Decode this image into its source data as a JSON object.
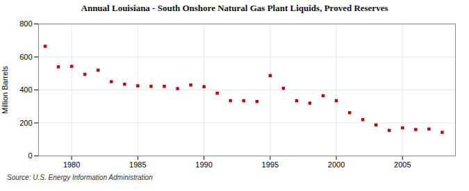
{
  "chart_data": {
    "type": "scatter",
    "title": "Annual Louisiana - South Onshore Natural Gas Plant Liquids, Proved Reserves",
    "ylabel": "Million Barrels",
    "caption": "Source: U.S. Energy Information Administration",
    "x": [
      1978,
      1979,
      1980,
      1981,
      1982,
      1983,
      1984,
      1985,
      1986,
      1987,
      1988,
      1989,
      1990,
      1991,
      1992,
      1993,
      1994,
      1995,
      1996,
      1997,
      1998,
      1999,
      2000,
      2001,
      2002,
      2003,
      2004,
      2005,
      2006,
      2007,
      2008
    ],
    "values": [
      665,
      540,
      543,
      495,
      520,
      450,
      435,
      425,
      422,
      422,
      408,
      430,
      420,
      380,
      335,
      335,
      330,
      487,
      410,
      335,
      320,
      365,
      335,
      262,
      220,
      188,
      155,
      170,
      160,
      163,
      143
    ],
    "color": "#cc0000",
    "marker": "square",
    "xlim": [
      1977.5,
      2009
    ],
    "xticks": [
      1980,
      1985,
      1990,
      1995,
      2000,
      2005
    ],
    "ylim": [
      0,
      800
    ],
    "yticks": [
      0,
      200,
      400,
      600,
      800
    ],
    "grid": true
  }
}
